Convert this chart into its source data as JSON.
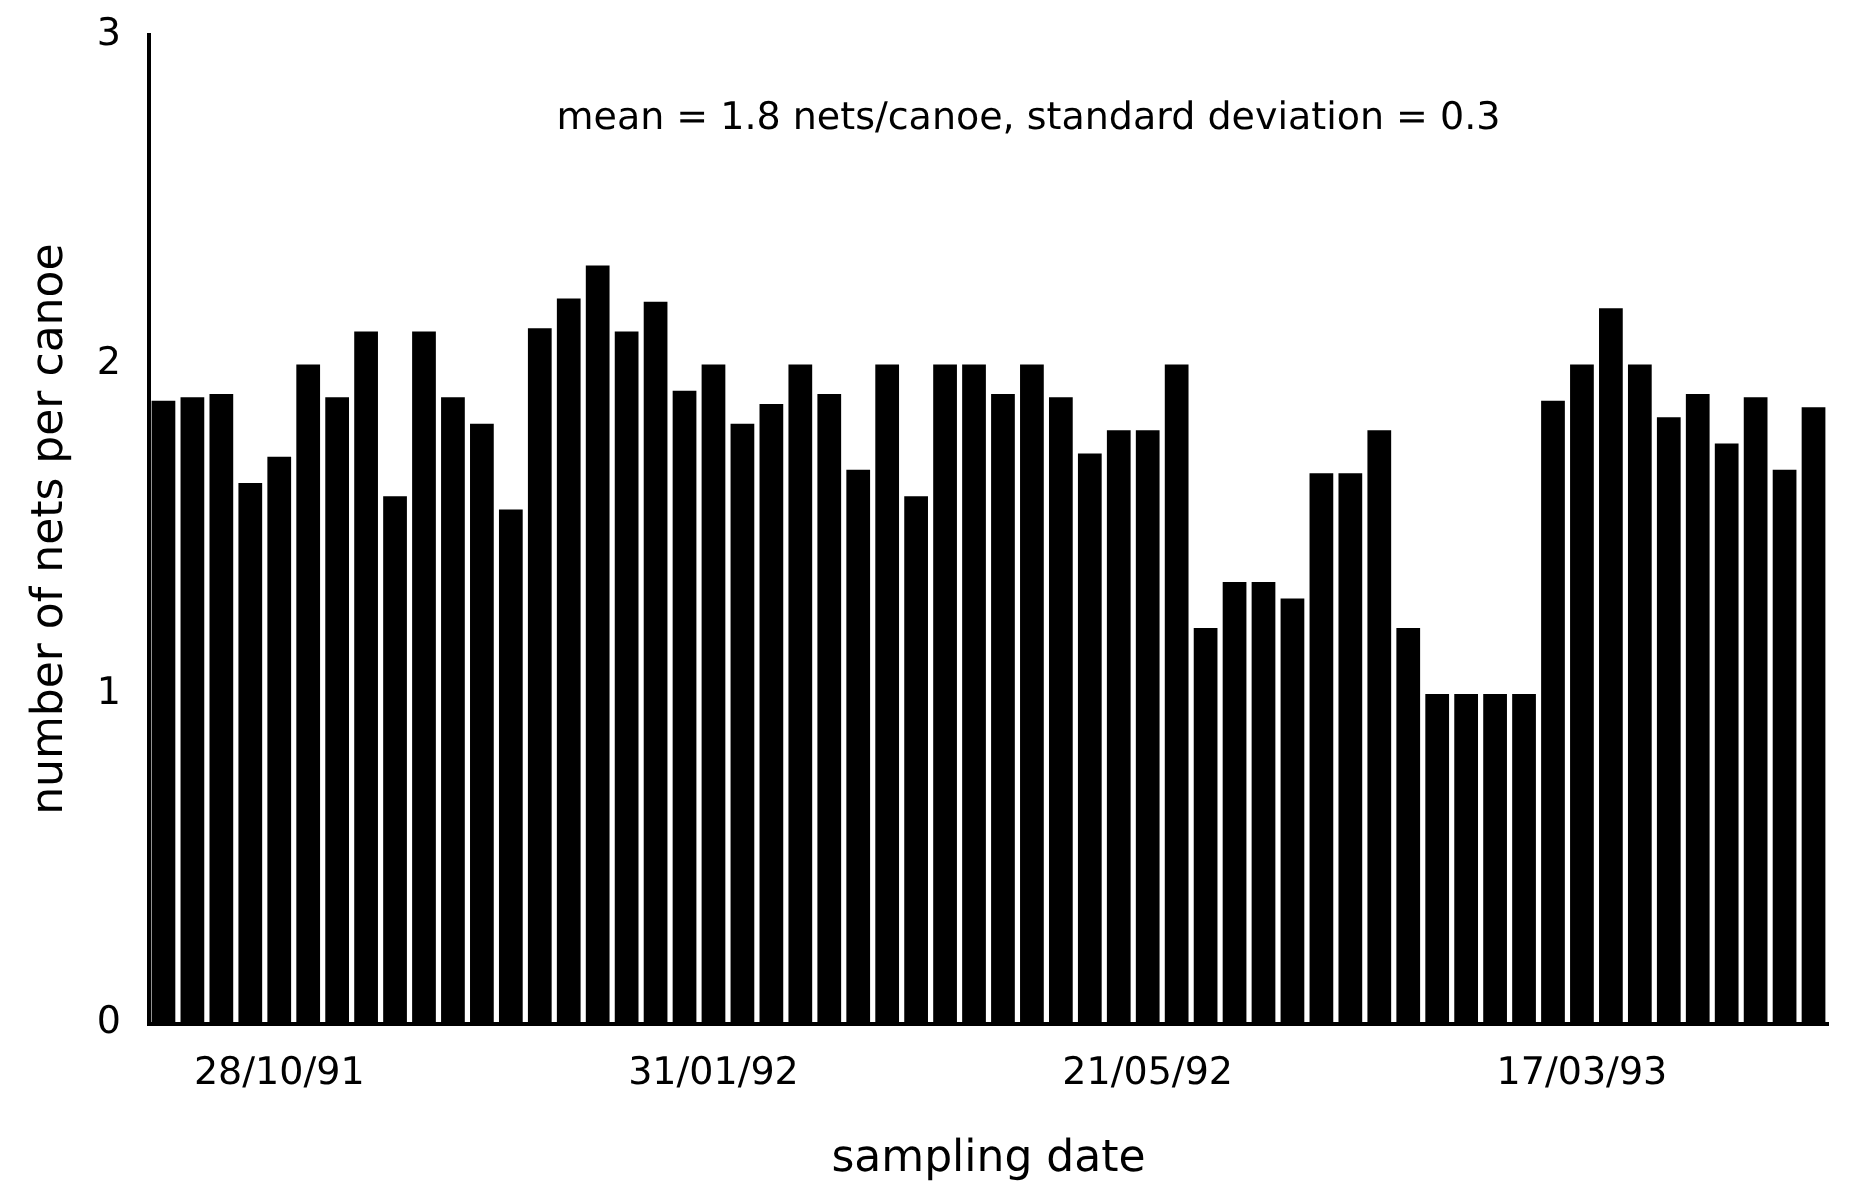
{
  "chart_data": {
    "type": "bar",
    "xlabel": "sampling date",
    "ylabel": "number of nets per canoe",
    "annotations": [
      "mean = 1.8 nets/canoe, standard deviation = 0.3"
    ],
    "categories": [
      null,
      null,
      null,
      null,
      "28/10/91",
      null,
      null,
      null,
      null,
      null,
      null,
      null,
      null,
      null,
      null,
      null,
      null,
      null,
      null,
      "31/01/92",
      null,
      null,
      null,
      null,
      null,
      null,
      null,
      null,
      null,
      null,
      null,
      null,
      null,
      null,
      "21/05/92",
      null,
      null,
      null,
      null,
      null,
      null,
      null,
      null,
      null,
      null,
      null,
      null,
      null,
      null,
      "17/03/93",
      null,
      null,
      null,
      null,
      null,
      null,
      null,
      null
    ],
    "values": [
      1.89,
      1.9,
      1.91,
      1.64,
      1.72,
      2.0,
      1.9,
      2.1,
      1.6,
      2.1,
      1.9,
      1.82,
      1.56,
      2.11,
      2.2,
      2.3,
      2.1,
      2.19,
      1.92,
      2.0,
      1.82,
      1.88,
      2.0,
      1.91,
      1.68,
      2.0,
      1.6,
      2.0,
      2.0,
      1.91,
      2.0,
      1.9,
      1.73,
      1.8,
      1.8,
      2.0,
      1.2,
      1.34,
      1.34,
      1.29,
      1.67,
      1.67,
      1.8,
      1.2,
      1.0,
      1.0,
      1.0,
      1.0,
      1.89,
      2.0,
      2.17,
      2.0,
      1.84,
      1.91,
      1.76,
      1.9,
      1.68,
      1.87
    ],
    "color": "#000000",
    "ylim": [
      0,
      3
    ],
    "yticks": [
      0,
      1,
      2,
      3
    ],
    "grid": false,
    "legend": false
  }
}
